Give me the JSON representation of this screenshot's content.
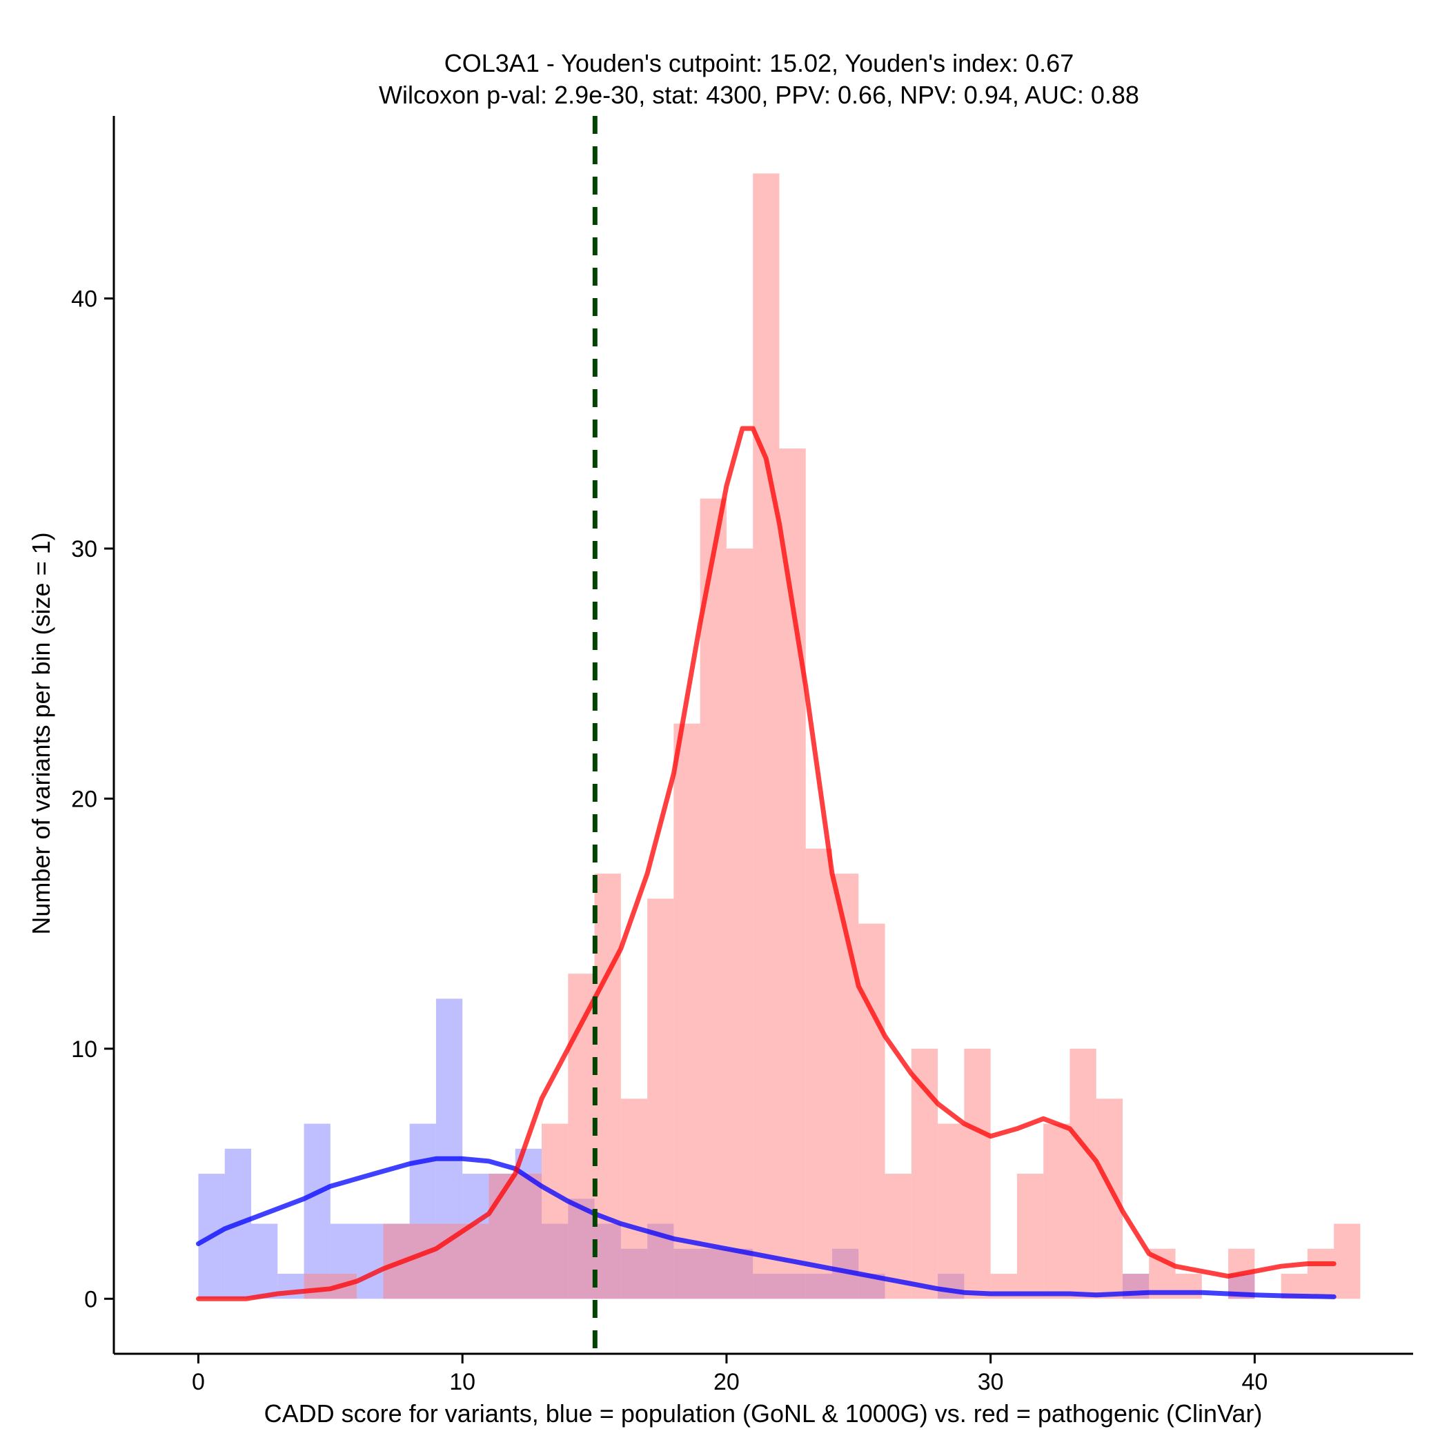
{
  "chart_data": {
    "type": "histogram",
    "title": "COL3A1 - Youden's cutpoint: 15.02, Youden's index: 0.67",
    "subtitle": "Wilcoxon p-val: 2.9e-30, stat: 4300, PPV: 0.66, NPV: 0.94, AUC: 0.88",
    "xlabel": "CADD score for variants, blue = population (GoNL & 1000G) vs. red = pathogenic (ClinVar)",
    "ylabel": "Number of variants per bin (size = 1)",
    "xlim": [
      -3.2,
      46
    ],
    "ylim": [
      -2.2,
      47.3
    ],
    "xticks": [
      0,
      10,
      20,
      30,
      40
    ],
    "yticks": [
      0,
      10,
      20,
      30,
      40
    ],
    "bin_width": 1,
    "cutpoint": 15.02,
    "colors": {
      "population": "#0000ff",
      "pathogenic": "#ff0000",
      "population_fill": "#8080ff",
      "pathogenic_fill": "#ff8080",
      "cutpoint": "#004400"
    },
    "series": [
      {
        "name": "population (GoNL & 1000G)",
        "color": "#0000ff",
        "bin_starts": [
          0,
          1,
          2,
          3,
          4,
          5,
          6,
          7,
          8,
          9,
          10,
          11,
          12,
          13,
          14,
          15,
          16,
          17,
          18,
          19,
          20,
          21,
          22,
          23,
          24,
          25,
          26,
          27,
          28,
          29,
          30,
          31,
          32,
          33,
          34,
          35,
          36,
          37,
          38,
          39,
          40,
          41,
          42,
          43
        ],
        "values": [
          5,
          6,
          3,
          1,
          7,
          3,
          3,
          3,
          7,
          12,
          5,
          5,
          6,
          3,
          4,
          3,
          2,
          3,
          2,
          2,
          2,
          1,
          1,
          1,
          2,
          1,
          0,
          0,
          1,
          0,
          0,
          0,
          0,
          0,
          0,
          1,
          0,
          0,
          0,
          1,
          0,
          0,
          0,
          0
        ],
        "density": [
          [
            0,
            2.2
          ],
          [
            1,
            2.8
          ],
          [
            2,
            3.2
          ],
          [
            3,
            3.6
          ],
          [
            4,
            4.0
          ],
          [
            5,
            4.5
          ],
          [
            6,
            4.8
          ],
          [
            7,
            5.1
          ],
          [
            8,
            5.4
          ],
          [
            9,
            5.6
          ],
          [
            10,
            5.6
          ],
          [
            11,
            5.5
          ],
          [
            12,
            5.2
          ],
          [
            13,
            4.5
          ],
          [
            14,
            3.9
          ],
          [
            15,
            3.4
          ],
          [
            16,
            3.0
          ],
          [
            17,
            2.7
          ],
          [
            18,
            2.4
          ],
          [
            19,
            2.2
          ],
          [
            20,
            2.0
          ],
          [
            21,
            1.8
          ],
          [
            22,
            1.6
          ],
          [
            23,
            1.4
          ],
          [
            24,
            1.2
          ],
          [
            25,
            1.0
          ],
          [
            26,
            0.8
          ],
          [
            27,
            0.6
          ],
          [
            28,
            0.4
          ],
          [
            29,
            0.25
          ],
          [
            30,
            0.2
          ],
          [
            31,
            0.2
          ],
          [
            32,
            0.2
          ],
          [
            33,
            0.2
          ],
          [
            34,
            0.15
          ],
          [
            35,
            0.2
          ],
          [
            36,
            0.25
          ],
          [
            37,
            0.25
          ],
          [
            38,
            0.25
          ],
          [
            39,
            0.2
          ],
          [
            40,
            0.15
          ],
          [
            41,
            0.12
          ],
          [
            42,
            0.1
          ],
          [
            43,
            0.08
          ]
        ]
      },
      {
        "name": "pathogenic (ClinVar)",
        "color": "#ff0000",
        "bin_starts": [
          0,
          1,
          2,
          3,
          4,
          5,
          6,
          7,
          8,
          9,
          10,
          11,
          12,
          13,
          14,
          15,
          16,
          17,
          18,
          19,
          20,
          21,
          22,
          23,
          24,
          25,
          26,
          27,
          28,
          29,
          30,
          31,
          32,
          33,
          34,
          35,
          36,
          37,
          38,
          39,
          40,
          41,
          42,
          43
        ],
        "values": [
          0,
          0,
          0,
          0,
          1,
          1,
          0,
          3,
          3,
          3,
          3,
          5,
          5,
          7,
          13,
          17,
          8,
          16,
          23,
          32,
          30,
          45,
          34,
          18,
          17,
          15,
          5,
          10,
          7,
          10,
          1,
          5,
          7,
          10,
          8,
          1,
          2,
          1,
          0,
          2,
          0,
          1,
          2,
          3
        ],
        "density": [
          [
            0,
            0
          ],
          [
            1,
            0
          ],
          [
            1.8,
            0
          ],
          [
            3,
            0.2
          ],
          [
            4,
            0.3
          ],
          [
            5,
            0.4
          ],
          [
            6,
            0.7
          ],
          [
            7,
            1.2
          ],
          [
            8,
            1.6
          ],
          [
            9,
            2.0
          ],
          [
            10,
            2.7
          ],
          [
            11,
            3.4
          ],
          [
            12,
            5.0
          ],
          [
            12.5,
            6.5
          ],
          [
            13,
            8.0
          ],
          [
            14,
            10.0
          ],
          [
            15,
            12.0
          ],
          [
            16,
            14.0
          ],
          [
            17,
            17.0
          ],
          [
            18,
            21.0
          ],
          [
            19,
            27.0
          ],
          [
            20,
            32.5
          ],
          [
            20.6,
            34.8
          ],
          [
            21,
            34.8
          ],
          [
            21.5,
            33.6
          ],
          [
            22,
            31.0
          ],
          [
            23,
            24.5
          ],
          [
            24,
            17.0
          ],
          [
            25,
            12.5
          ],
          [
            26,
            10.5
          ],
          [
            27,
            9.0
          ],
          [
            28,
            7.8
          ],
          [
            29,
            7.0
          ],
          [
            30,
            6.5
          ],
          [
            31,
            6.8
          ],
          [
            32,
            7.2
          ],
          [
            33,
            6.8
          ],
          [
            34,
            5.5
          ],
          [
            35,
            3.5
          ],
          [
            36,
            1.8
          ],
          [
            37,
            1.3
          ],
          [
            38,
            1.1
          ],
          [
            39,
            0.9
          ],
          [
            40,
            1.1
          ],
          [
            41,
            1.3
          ],
          [
            42,
            1.4
          ],
          [
            43,
            1.4
          ]
        ]
      }
    ]
  }
}
